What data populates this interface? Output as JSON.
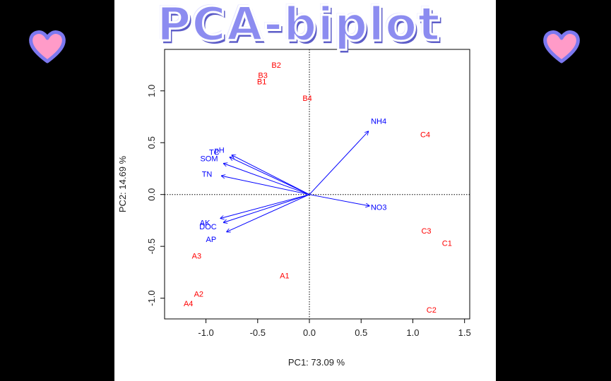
{
  "banner": {
    "title": "PCA-biplot"
  },
  "decor": {
    "heart_fill": "#ff9bc8",
    "heart_outline": "#7c78f0"
  },
  "chart_data": {
    "type": "scatter",
    "subtype": "pca-biplot",
    "xlabel": "PC1: 73.09 %",
    "ylabel": "PC2: 14.69 %",
    "xlim": [
      -1.4,
      1.55
    ],
    "ylim": [
      -1.2,
      1.4
    ],
    "xticks": [
      "-1.0",
      "-0.5",
      "0.0",
      "0.5",
      "1.0",
      "1.5"
    ],
    "xtick_values": [
      -1.0,
      -0.5,
      0.0,
      0.5,
      1.0,
      1.5
    ],
    "yticks": [
      "-1.0",
      "-0.5",
      "0.0",
      "0.5",
      "1.0"
    ],
    "ytick_values": [
      -1.0,
      -0.5,
      0.0,
      0.5,
      1.0
    ],
    "reference_lines": {
      "x": 0,
      "y": 0,
      "style": "dotted"
    },
    "samples": {
      "color": "#ff0000",
      "points": [
        {
          "label": "B2",
          "x": -0.32,
          "y": 1.25
        },
        {
          "label": "B3",
          "x": -0.45,
          "y": 1.15
        },
        {
          "label": "B1",
          "x": -0.46,
          "y": 1.09
        },
        {
          "label": "B4",
          "x": -0.02,
          "y": 0.93
        },
        {
          "label": "C4",
          "x": 1.12,
          "y": 0.58
        },
        {
          "label": "C3",
          "x": 1.13,
          "y": -0.35
        },
        {
          "label": "C1",
          "x": 1.33,
          "y": -0.47
        },
        {
          "label": "C2",
          "x": 1.18,
          "y": -1.11
        },
        {
          "label": "A3",
          "x": -1.09,
          "y": -0.59
        },
        {
          "label": "A1",
          "x": -0.24,
          "y": -0.78
        },
        {
          "label": "A2",
          "x": -1.07,
          "y": -0.96
        },
        {
          "label": "A4",
          "x": -1.17,
          "y": -1.05
        }
      ]
    },
    "loadings": {
      "color": "#0000ff",
      "vectors": [
        {
          "label": "NH4",
          "x": 0.57,
          "y": 0.61
        },
        {
          "label": "NO3",
          "x": 0.58,
          "y": -0.11
        },
        {
          "label": "pH",
          "x": -0.75,
          "y": 0.38
        },
        {
          "label": "TC",
          "x": -0.77,
          "y": 0.36
        },
        {
          "label": "SOM",
          "x": -0.83,
          "y": 0.3
        },
        {
          "label": "TN",
          "x": -0.85,
          "y": 0.18
        },
        {
          "label": "AK",
          "x": -0.86,
          "y": -0.23
        },
        {
          "label": "DOC",
          "x": -0.83,
          "y": -0.27
        },
        {
          "label": "AP",
          "x": -0.8,
          "y": -0.36
        }
      ]
    },
    "label_positions": {
      "NH4": [
        0.67,
        0.71
      ],
      "NO3": [
        0.67,
        -0.12
      ],
      "pH": [
        -0.87,
        0.43
      ],
      "TC": [
        -0.92,
        0.41
      ],
      "SOM": [
        -0.97,
        0.35
      ],
      "TN": [
        -0.99,
        0.2
      ],
      "AK": [
        -1.01,
        -0.27
      ],
      "DOC": [
        -0.98,
        -0.31
      ],
      "AP": [
        -0.95,
        -0.43
      ]
    }
  }
}
